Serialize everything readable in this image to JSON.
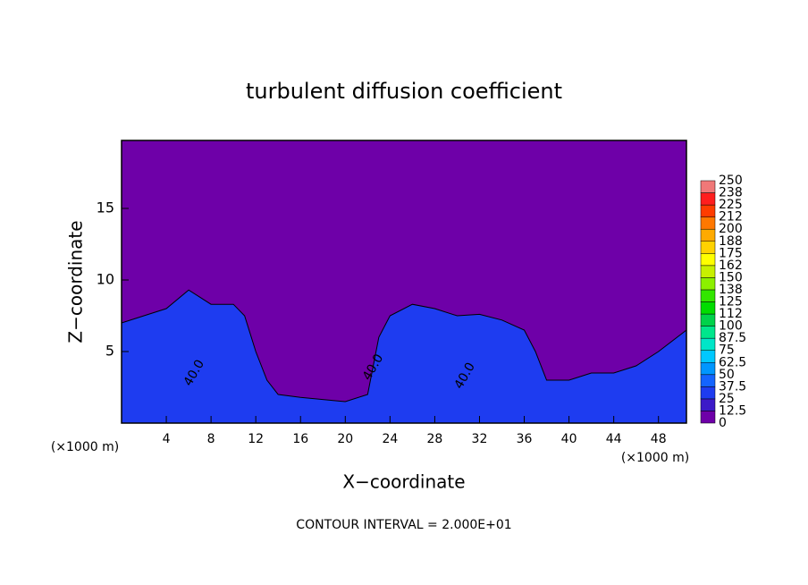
{
  "chart_data": {
    "type": "contour",
    "title": "turbulent diffusion coefficient",
    "xlabel": "X−coordinate",
    "ylabel": "Z−coordinate",
    "unit_labels": [
      "(×1000 m)",
      "(×1000 m)"
    ],
    "footer": "CONTOUR INTERVAL = 2.000E+01",
    "xlim": [
      0,
      50.5
    ],
    "ylim": [
      0,
      19.75
    ],
    "xticks": [
      4,
      8,
      12,
      16,
      20,
      24,
      28,
      32,
      36,
      40,
      44,
      48
    ],
    "yticks": [
      5,
      10,
      15
    ],
    "background_color": "#6e00a8",
    "layer": {
      "color": "#1e3cf0",
      "x": [
        0,
        2,
        4,
        6,
        8,
        10,
        11,
        12,
        13,
        14,
        16,
        20,
        22,
        23,
        24,
        26,
        28,
        30,
        32,
        34,
        36,
        37,
        38,
        40,
        42,
        44,
        46,
        48,
        50.5
      ],
      "z": [
        7,
        7.5,
        8,
        9.3,
        8.3,
        8.3,
        7.5,
        5,
        3,
        2,
        1.8,
        1.5,
        2,
        6,
        7.5,
        8.3,
        8,
        7.5,
        7.6,
        7.2,
        6.5,
        5,
        3,
        3,
        3.5,
        3.5,
        4,
        5,
        6.5
      ]
    },
    "contour_labels": {
      "text": [
        "40.0",
        "40.0",
        "40.0"
      ],
      "x": [
        6.5,
        22.5,
        30.7
      ],
      "z": [
        3.5,
        3.9,
        3.3
      ]
    },
    "colorbar": {
      "levels": [
        0,
        12.5,
        25,
        37.5,
        50,
        62.5,
        75,
        87.5,
        100,
        {
          "value": 112.5,
          "label": "112"
        },
        125,
        {
          "value": 137.5,
          "label": "138"
        },
        150,
        {
          "value": 162.5,
          "label": "162"
        },
        175,
        {
          "value": 187.5,
          "label": "188"
        },
        200,
        {
          "value": 212.5,
          "label": "212"
        },
        225,
        {
          "value": 237.5,
          "label": "238"
        },
        250
      ],
      "colors": [
        "#6e00a8",
        "#3c1ac8",
        "#1e3cf0",
        "#1464ff",
        "#0096ff",
        "#00c8ff",
        "#00e6c8",
        "#00e68c",
        "#00d24a",
        "#00dc00",
        "#32e600",
        "#8cf000",
        "#c8f000",
        "#ffff00",
        "#ffd200",
        "#ffaa00",
        "#ff7800",
        "#ff3c00",
        "#ff1e1e",
        "#f07878"
      ]
    }
  }
}
